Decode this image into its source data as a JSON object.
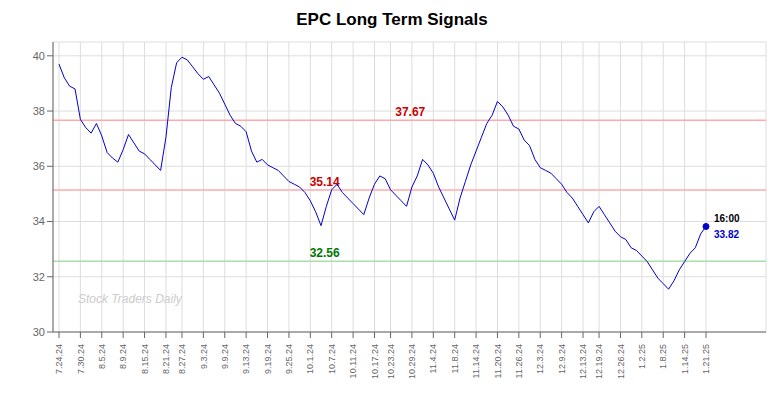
{
  "chart_data": {
    "type": "line",
    "title": "EPC Long Term Signals",
    "categories": [
      "7.24.24",
      null,
      null,
      null,
      "7.30.24",
      null,
      null,
      null,
      "8.5.24",
      null,
      null,
      null,
      "8.9.24",
      null,
      null,
      null,
      "8.15.24",
      null,
      null,
      null,
      "8.21.24",
      null,
      null,
      "8.27.24",
      null,
      null,
      null,
      "9.3.24",
      null,
      null,
      null,
      "9.9.24",
      null,
      null,
      null,
      "9.13.24",
      null,
      null,
      null,
      "9.19.24",
      null,
      null,
      null,
      "9.25.24",
      null,
      null,
      null,
      "10.1.24",
      null,
      null,
      null,
      "10.7.24",
      null,
      null,
      null,
      "10.11.24",
      null,
      null,
      null,
      "10.17.24",
      null,
      null,
      "10.23.24",
      null,
      null,
      null,
      "10.29.24",
      null,
      null,
      null,
      "11.4.24",
      null,
      null,
      null,
      "11.8.24",
      null,
      null,
      null,
      "11.14.24",
      null,
      null,
      null,
      "11.20.24",
      null,
      null,
      null,
      "11.26.24",
      null,
      null,
      null,
      "12.3.24",
      null,
      null,
      null,
      "12.9.24",
      null,
      null,
      null,
      "12.13.24",
      null,
      null,
      "12.19.24",
      null,
      null,
      null,
      "12.26.24",
      null,
      null,
      null,
      "1.2.25",
      null,
      null,
      null,
      "1.8.25",
      null,
      null,
      null,
      "1.14.25",
      null,
      null,
      null,
      "1.21.25"
    ],
    "values": [
      39.7,
      39.2,
      38.9,
      38.8,
      37.7,
      37.4,
      37.2,
      37.55,
      37.1,
      36.5,
      36.3,
      36.15,
      36.6,
      37.15,
      36.85,
      36.55,
      36.45,
      36.25,
      36.05,
      35.85,
      37.05,
      38.85,
      39.75,
      39.95,
      39.85,
      39.6,
      39.35,
      39.15,
      39.25,
      38.95,
      38.65,
      38.25,
      37.85,
      37.55,
      37.45,
      37.25,
      36.55,
      36.15,
      36.25,
      36.05,
      35.95,
      35.85,
      35.65,
      35.45,
      35.35,
      35.25,
      35.05,
      34.75,
      34.35,
      33.85,
      34.55,
      35.15,
      35.35,
      35.05,
      34.85,
      34.65,
      34.45,
      34.25,
      34.85,
      35.35,
      35.65,
      35.55,
      35.15,
      34.95,
      34.75,
      34.55,
      35.25,
      35.65,
      36.25,
      36.05,
      35.75,
      35.25,
      34.85,
      34.45,
      34.05,
      34.85,
      35.45,
      36.05,
      36.55,
      37.05,
      37.55,
      37.85,
      38.35,
      38.15,
      37.85,
      37.45,
      37.35,
      36.95,
      36.75,
      36.25,
      35.95,
      35.85,
      35.75,
      35.55,
      35.35,
      35.05,
      34.85,
      34.55,
      34.25,
      33.95,
      34.35,
      34.55,
      34.25,
      33.95,
      33.65,
      33.45,
      33.35,
      33.05,
      32.95,
      32.75,
      32.55,
      32.25,
      31.95,
      31.75,
      31.55,
      31.85,
      32.25,
      32.55,
      32.85,
      33.05,
      33.55,
      33.82
    ],
    "color": "#0000cc",
    "ylim": [
      30,
      40.5
    ],
    "yticks": [
      30,
      32,
      34,
      36,
      38,
      40
    ],
    "grid": true,
    "hlines": [
      {
        "value": 37.67,
        "color": "#ffaaaa",
        "label_color": "#cc0000"
      },
      {
        "value": 35.14,
        "color": "#ffaaaa",
        "label_color": "#cc0000"
      },
      {
        "value": 32.56,
        "color": "#aaddaa",
        "label_color": "#007700"
      }
    ],
    "last_point": {
      "time": "16:00",
      "value": 33.82,
      "time_color": "#000000",
      "color": "#0000cc"
    },
    "watermark": {
      "text": "Stock Traders Daily",
      "color": "#cccccc"
    }
  }
}
